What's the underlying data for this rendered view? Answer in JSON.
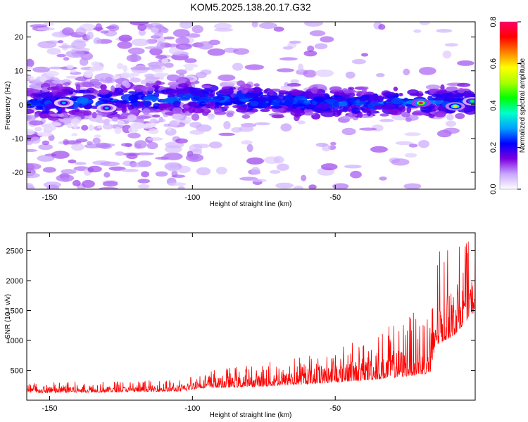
{
  "title": "KOM5.2025.138.20.17.G32",
  "chart_data": [
    {
      "type": "heatmap",
      "xlabel": "Height of straight line (km)",
      "ylabel": "Frequency (Hz)",
      "xlim": [
        -158,
        -1
      ],
      "ylim": [
        -25,
        24.5
      ],
      "xticks": [
        -150,
        -100,
        -50
      ],
      "xtick_labels": [
        "-150",
        "-100",
        "-50"
      ],
      "yticks": [
        -20,
        -10,
        0,
        10,
        20
      ],
      "ytick_labels": [
        "-20",
        "-10",
        "0",
        "10",
        "20"
      ],
      "colorbar": {
        "label": "Normalized spectral amplitude",
        "range": [
          0,
          0.8
        ],
        "ticks": [
          0,
          0.2,
          0.4,
          0.6,
          0.8
        ],
        "tick_labels": [
          "0.0",
          "0.2",
          "0.4",
          "0.6",
          "0.8"
        ],
        "colormap": [
          "#ffffff",
          "#c9a6ff",
          "#7b00e0",
          "#0000ff",
          "#00a0ff",
          "#00ffcc",
          "#00ff00",
          "#aaff00",
          "#ffff00",
          "#ff8000",
          "#ff0000",
          "#ff0066"
        ]
      },
      "features": {
        "band_center_freq": [
          {
            "x": -158,
            "f": 0.5
          },
          {
            "x": -100,
            "f": 2.0
          },
          {
            "x": -50,
            "f": 0.5
          },
          {
            "x": -1,
            "f": 1.0
          }
        ],
        "hot_spots": [
          {
            "x": -20,
            "f": 0.5,
            "amp": 0.8
          },
          {
            "x": -8,
            "f": -0.5,
            "amp": 0.6
          },
          {
            "x": -2,
            "f": 1.0,
            "amp": 0.45
          },
          {
            "x": -145,
            "f": 0.5,
            "amp": 0.3
          },
          {
            "x": -130,
            "f": -1.0,
            "amp": 0.3
          }
        ]
      },
      "grid": false
    },
    {
      "type": "line",
      "xlabel": "Height of straight line (km)",
      "ylabel": "SNR (10 * v/v)",
      "xlim": [
        -158,
        -1
      ],
      "ylim": [
        0,
        2800
      ],
      "xticks": [
        -150,
        -100,
        -50
      ],
      "xtick_labels": [
        "-150",
        "-100",
        "-50"
      ],
      "yticks": [
        500,
        1000,
        1500,
        2000,
        2500
      ],
      "ytick_labels": [
        "500",
        "1000",
        "1500",
        "2000",
        "2500"
      ],
      "series": [
        {
          "color": "#ff0000",
          "envelope": [
            {
              "x": -158,
              "base": 120,
              "amp": 180
            },
            {
              "x": -103,
              "base": 150,
              "amp": 200
            },
            {
              "x": -98,
              "base": 200,
              "amp": 300
            },
            {
              "x": -75,
              "base": 230,
              "amp": 400
            },
            {
              "x": -55,
              "base": 280,
              "amp": 550
            },
            {
              "x": -35,
              "base": 350,
              "amp": 800
            },
            {
              "x": -25,
              "base": 400,
              "amp": 1000
            },
            {
              "x": -16,
              "base": 450,
              "amp": 1200
            },
            {
              "x": -15,
              "base": 900,
              "amp": 1600
            },
            {
              "x": -8,
              "base": 1100,
              "amp": 1500
            },
            {
              "x": -1,
              "base": 1500,
              "amp": 1200
            }
          ]
        }
      ],
      "grid": false
    }
  ]
}
